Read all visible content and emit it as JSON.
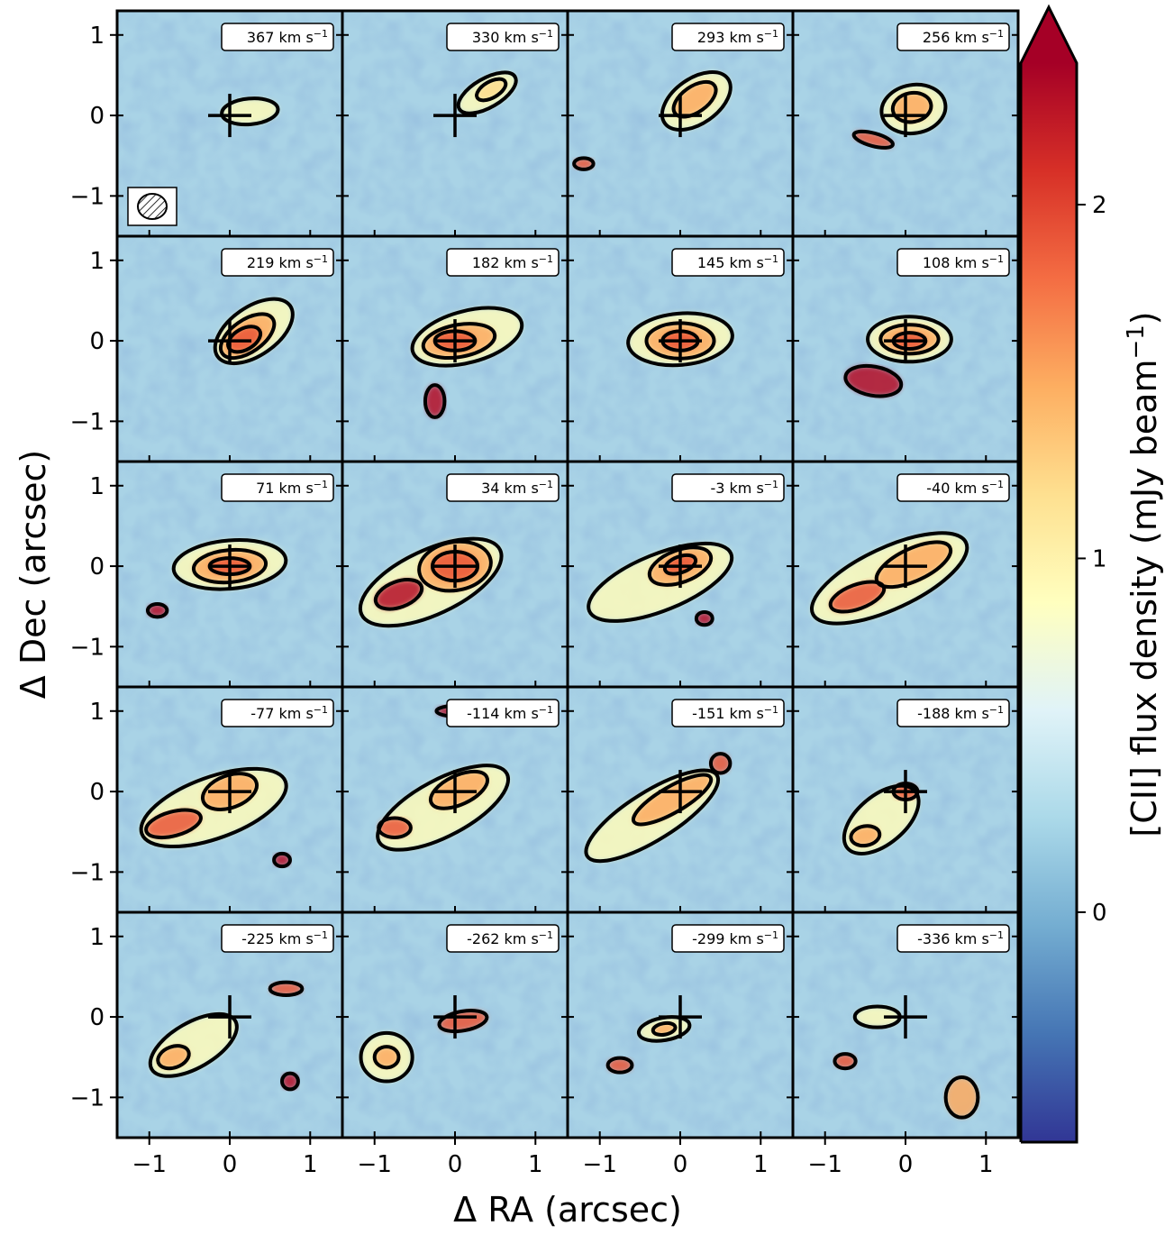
{
  "chart_data": {
    "type": "heatmap",
    "xlabel": "Δ RA (arcsec)",
    "ylabel": "Δ Dec (arcsec)",
    "colorbar_label": "[CII] flux density (mJy beam",
    "colorbar_label_sup": "−1",
    "colorbar_label_close": ")",
    "colorbar_ticks": [
      "0",
      "1",
      "2"
    ],
    "colorbar_tick_values": [
      0,
      1,
      2
    ],
    "colorbar_range": [
      -0.65,
      2.4
    ],
    "colorbar_extend": "max",
    "colormap": "RdYlBu_r",
    "colormap_stops": [
      "#313695",
      "#4575b4",
      "#74add1",
      "#abd9e9",
      "#e0f3f8",
      "#ffffbf",
      "#fee090",
      "#fdae61",
      "#f46d43",
      "#d73027",
      "#a50026"
    ],
    "x_ticks": [
      "−1",
      "0",
      "1"
    ],
    "y_ticks": [
      "1",
      "0",
      "−1"
    ],
    "tick_values": [
      -1,
      0,
      1
    ],
    "xlim": [
      -1.4,
      1.4
    ],
    "ylim": [
      -1.5,
      1.3
    ],
    "grid": false,
    "velocity_unit": "km s",
    "velocity_unit_sup": "−1",
    "panels": [
      {
        "velocity": "367",
        "row": 0,
        "col": 0,
        "beam": true,
        "contours": [
          {
            "cx": 0.25,
            "cy": 0.05,
            "rx": 0.35,
            "ry": 0.16,
            "rot": -5
          }
        ]
      },
      {
        "velocity": "330",
        "row": 0,
        "col": 1,
        "contours": [
          {
            "cx": 0.4,
            "cy": 0.28,
            "rx": 0.4,
            "ry": 0.18,
            "rot": -30
          },
          {
            "cx": 0.45,
            "cy": 0.32,
            "rx": 0.2,
            "ry": 0.1,
            "rot": -30
          }
        ]
      },
      {
        "velocity": "293",
        "row": 0,
        "col": 2,
        "contours": [
          {
            "cx": 0.2,
            "cy": 0.18,
            "rx": 0.48,
            "ry": 0.28,
            "rot": -35
          },
          {
            "cx": 0.18,
            "cy": 0.2,
            "rx": 0.3,
            "ry": 0.16,
            "rot": -35
          },
          {
            "cx": -1.2,
            "cy": -0.6,
            "rx": 0.12,
            "ry": 0.07,
            "rot": 0
          }
        ]
      },
      {
        "velocity": "256",
        "row": 0,
        "col": 3,
        "contours": [
          {
            "cx": 0.1,
            "cy": 0.08,
            "rx": 0.4,
            "ry": 0.3,
            "rot": -10
          },
          {
            "cx": 0.08,
            "cy": 0.1,
            "rx": 0.24,
            "ry": 0.18,
            "rot": -10
          },
          {
            "cx": -0.4,
            "cy": -0.3,
            "rx": 0.25,
            "ry": 0.08,
            "rot": 15
          }
        ]
      },
      {
        "velocity": "219",
        "row": 1,
        "col": 0,
        "contours": [
          {
            "cx": 0.3,
            "cy": 0.12,
            "rx": 0.55,
            "ry": 0.3,
            "rot": -35
          },
          {
            "cx": 0.22,
            "cy": 0.06,
            "rx": 0.38,
            "ry": 0.2,
            "rot": -35
          },
          {
            "cx": 0.18,
            "cy": 0.02,
            "rx": 0.22,
            "ry": 0.13,
            "rot": -30
          }
        ]
      },
      {
        "velocity": "182",
        "row": 1,
        "col": 1,
        "contours": [
          {
            "cx": 0.15,
            "cy": 0.05,
            "rx": 0.7,
            "ry": 0.32,
            "rot": -15
          },
          {
            "cx": 0.05,
            "cy": 0.0,
            "rx": 0.45,
            "ry": 0.2,
            "rot": -10
          },
          {
            "cx": 0.0,
            "cy": 0.0,
            "rx": 0.25,
            "ry": 0.12,
            "rot": 0
          },
          {
            "cx": -0.25,
            "cy": -0.75,
            "rx": 0.12,
            "ry": 0.2,
            "rot": 0
          }
        ]
      },
      {
        "velocity": "145",
        "row": 1,
        "col": 2,
        "contours": [
          {
            "cx": 0.0,
            "cy": 0.02,
            "rx": 0.65,
            "ry": 0.32,
            "rot": -5
          },
          {
            "cx": 0.0,
            "cy": 0.0,
            "rx": 0.42,
            "ry": 0.22,
            "rot": 0
          },
          {
            "cx": 0.0,
            "cy": 0.0,
            "rx": 0.22,
            "ry": 0.12,
            "rot": 0
          }
        ]
      },
      {
        "velocity": "108",
        "row": 1,
        "col": 3,
        "contours": [
          {
            "cx": 0.05,
            "cy": 0.02,
            "rx": 0.52,
            "ry": 0.28,
            "rot": 0
          },
          {
            "cx": 0.05,
            "cy": 0.02,
            "rx": 0.36,
            "ry": 0.18,
            "rot": 0
          },
          {
            "cx": 0.05,
            "cy": 0.0,
            "rx": 0.2,
            "ry": 0.1,
            "rot": 0
          },
          {
            "cx": -0.4,
            "cy": -0.5,
            "rx": 0.35,
            "ry": 0.18,
            "rot": 10
          }
        ]
      },
      {
        "velocity": "71",
        "row": 2,
        "col": 0,
        "contours": [
          {
            "cx": 0.0,
            "cy": 0.02,
            "rx": 0.7,
            "ry": 0.3,
            "rot": -5
          },
          {
            "cx": 0.0,
            "cy": 0.0,
            "rx": 0.45,
            "ry": 0.2,
            "rot": -5
          },
          {
            "cx": 0.0,
            "cy": 0.0,
            "rx": 0.25,
            "ry": 0.1,
            "rot": 0
          },
          {
            "cx": -0.9,
            "cy": -0.55,
            "rx": 0.12,
            "ry": 0.08,
            "rot": 0
          }
        ]
      },
      {
        "velocity": "34",
        "row": 2,
        "col": 1,
        "contours": [
          {
            "cx": -0.3,
            "cy": -0.2,
            "rx": 0.95,
            "ry": 0.4,
            "rot": -25
          },
          {
            "cx": 0.0,
            "cy": 0.0,
            "rx": 0.45,
            "ry": 0.3,
            "rot": -10
          },
          {
            "cx": 0.0,
            "cy": 0.0,
            "rx": 0.28,
            "ry": 0.18,
            "rot": 0
          },
          {
            "cx": -0.7,
            "cy": -0.35,
            "rx": 0.3,
            "ry": 0.16,
            "rot": -20
          }
        ]
      },
      {
        "velocity": "-3",
        "row": 2,
        "col": 2,
        "contours": [
          {
            "cx": -0.25,
            "cy": -0.2,
            "rx": 0.95,
            "ry": 0.35,
            "rot": -22
          },
          {
            "cx": 0.0,
            "cy": 0.0,
            "rx": 0.4,
            "ry": 0.2,
            "rot": -20
          },
          {
            "cx": 0.0,
            "cy": 0.02,
            "rx": 0.2,
            "ry": 0.1,
            "rot": -20
          },
          {
            "cx": 0.3,
            "cy": -0.65,
            "rx": 0.1,
            "ry": 0.08,
            "rot": 0
          }
        ]
      },
      {
        "velocity": "-40",
        "row": 2,
        "col": 3,
        "contours": [
          {
            "cx": -0.2,
            "cy": -0.15,
            "rx": 1.05,
            "ry": 0.38,
            "rot": -25
          },
          {
            "cx": 0.1,
            "cy": 0.02,
            "rx": 0.5,
            "ry": 0.2,
            "rot": -25
          },
          {
            "cx": -0.6,
            "cy": -0.38,
            "rx": 0.35,
            "ry": 0.15,
            "rot": -20
          }
        ]
      },
      {
        "velocity": "-77",
        "row": 3,
        "col": 0,
        "contours": [
          {
            "cx": -0.2,
            "cy": -0.2,
            "rx": 0.95,
            "ry": 0.38,
            "rot": -20
          },
          {
            "cx": 0.0,
            "cy": 0.0,
            "rx": 0.35,
            "ry": 0.2,
            "rot": -20
          },
          {
            "cx": -0.7,
            "cy": -0.4,
            "rx": 0.35,
            "ry": 0.15,
            "rot": -15
          },
          {
            "cx": 0.65,
            "cy": -0.85,
            "rx": 0.1,
            "ry": 0.08,
            "rot": 0
          }
        ]
      },
      {
        "velocity": "-114",
        "row": 3,
        "col": 1,
        "contours": [
          {
            "cx": -0.15,
            "cy": -0.2,
            "rx": 0.9,
            "ry": 0.35,
            "rot": -28
          },
          {
            "cx": 0.05,
            "cy": 0.02,
            "rx": 0.38,
            "ry": 0.18,
            "rot": -25
          },
          {
            "cx": -0.75,
            "cy": -0.45,
            "rx": 0.2,
            "ry": 0.12,
            "rot": 0
          },
          {
            "cx": 0.05,
            "cy": 1.0,
            "rx": 0.28,
            "ry": 0.07,
            "rot": 0
          }
        ]
      },
      {
        "velocity": "-151",
        "row": 3,
        "col": 2,
        "contours": [
          {
            "cx": -0.35,
            "cy": -0.3,
            "rx": 0.95,
            "ry": 0.3,
            "rot": -32
          },
          {
            "cx": -0.1,
            "cy": -0.1,
            "rx": 0.55,
            "ry": 0.16,
            "rot": -30
          },
          {
            "cx": 0.5,
            "cy": 0.35,
            "rx": 0.12,
            "ry": 0.12,
            "rot": 0
          }
        ]
      },
      {
        "velocity": "-188",
        "row": 3,
        "col": 3,
        "contours": [
          {
            "cx": -0.3,
            "cy": -0.35,
            "rx": 0.55,
            "ry": 0.3,
            "rot": -40
          },
          {
            "cx": -0.5,
            "cy": -0.55,
            "rx": 0.18,
            "ry": 0.12,
            "rot": -10
          },
          {
            "cx": 0.0,
            "cy": 0.0,
            "rx": 0.15,
            "ry": 0.1,
            "rot": 0
          }
        ]
      },
      {
        "velocity": "-225",
        "row": 4,
        "col": 0,
        "contours": [
          {
            "cx": -0.45,
            "cy": -0.35,
            "rx": 0.6,
            "ry": 0.28,
            "rot": -30
          },
          {
            "cx": -0.7,
            "cy": -0.5,
            "rx": 0.2,
            "ry": 0.13,
            "rot": -20
          },
          {
            "cx": 0.7,
            "cy": 0.35,
            "rx": 0.2,
            "ry": 0.08,
            "rot": 0
          },
          {
            "cx": 0.75,
            "cy": -0.8,
            "rx": 0.1,
            "ry": 0.1,
            "rot": 0
          }
        ]
      },
      {
        "velocity": "-262",
        "row": 4,
        "col": 1,
        "contours": [
          {
            "cx": -0.85,
            "cy": -0.5,
            "rx": 0.32,
            "ry": 0.3,
            "rot": 0
          },
          {
            "cx": -0.85,
            "cy": -0.5,
            "rx": 0.15,
            "ry": 0.13,
            "rot": 0
          },
          {
            "cx": 0.1,
            "cy": -0.05,
            "rx": 0.3,
            "ry": 0.12,
            "rot": -10
          }
        ]
      },
      {
        "velocity": "-299",
        "row": 4,
        "col": 2,
        "contours": [
          {
            "cx": -0.2,
            "cy": -0.15,
            "rx": 0.32,
            "ry": 0.14,
            "rot": -10
          },
          {
            "cx": -0.2,
            "cy": -0.15,
            "rx": 0.14,
            "ry": 0.07,
            "rot": -10
          },
          {
            "cx": -0.75,
            "cy": -0.6,
            "rx": 0.15,
            "ry": 0.09,
            "rot": 0
          }
        ]
      },
      {
        "velocity": "-336",
        "row": 4,
        "col": 3,
        "contours": [
          {
            "cx": -0.35,
            "cy": 0.0,
            "rx": 0.28,
            "ry": 0.13,
            "rot": 0
          },
          {
            "cx": 0.7,
            "cy": -1.0,
            "rx": 0.2,
            "ry": 0.25,
            "rot": 0
          },
          {
            "cx": -0.75,
            "cy": -0.55,
            "rx": 0.13,
            "ry": 0.09,
            "rot": 0
          }
        ]
      }
    ]
  }
}
